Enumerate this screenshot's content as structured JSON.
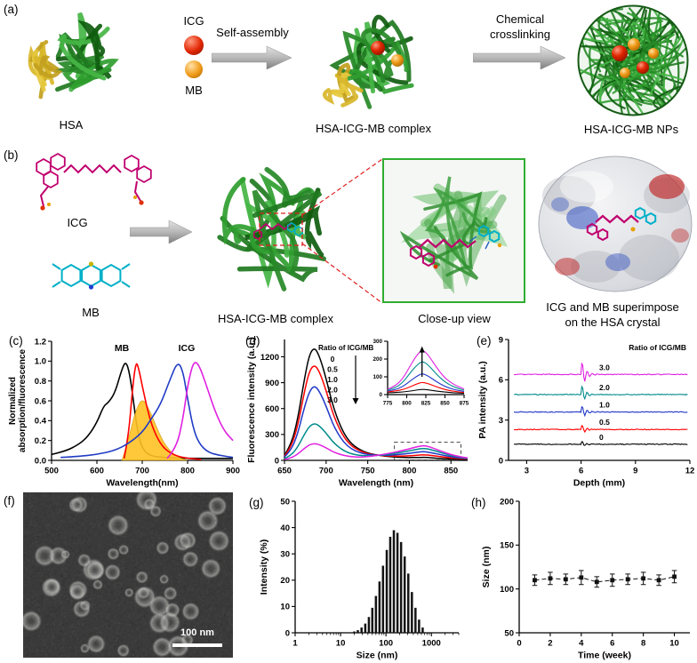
{
  "panels": {
    "a": {
      "tag": "(a)",
      "hsa": "HSA",
      "icg": "ICG",
      "mb": "MB",
      "arrow1": "Self-assembly",
      "arrow2": [
        "Chemical",
        "crosslinking"
      ],
      "complex": "HSA-ICG-MB complex",
      "nps": "HSA-ICG-MB NPs"
    },
    "b": {
      "tag": "(b)",
      "icg": "ICG",
      "mb": "MB",
      "complex": "HSA-ICG-MB complex",
      "closeup": "Close-up view",
      "superimpose": [
        "ICG and MB superimpose",
        "on the HSA crystal"
      ]
    },
    "c": {
      "tag": "(c)"
    },
    "d": {
      "tag": "(d)"
    },
    "e": {
      "tag": "(e)"
    },
    "f": {
      "tag": "(f)",
      "scalebar": "100 nm"
    },
    "g": {
      "tag": "(g)"
    },
    "h": {
      "tag": "(h)"
    }
  },
  "colors": {
    "ribbon_green": [
      "#1f7a1f",
      "#2f9e2f",
      "#45b545",
      "#0f5c0f",
      "#278927"
    ],
    "ribbon_yellow": [
      "#d8b62a",
      "#c2a01e",
      "#e6c93e"
    ],
    "icg_red_sphere": "#e02500",
    "mb_orange_sphere": "#f09a18",
    "icg_structure": "#c0006e",
    "mb_structure": "#00b0c8",
    "closeup_border": "#2fae2f",
    "dashed_connector": "#e02020"
  },
  "chart_data": [
    {
      "id": "c",
      "type": "line",
      "xlabel": "Wavelength(nm)",
      "ylabel_lines": [
        "Normalized",
        "absorption/fluorescence"
      ],
      "xlim": [
        500,
        900
      ],
      "ylim": [
        0,
        1.2
      ],
      "xticks": [
        500,
        600,
        700,
        800,
        900
      ],
      "yticks": [
        0,
        0.2,
        0.4,
        0.6,
        0.8,
        1.0,
        1.2
      ],
      "ytick_decimals": 1,
      "annotations": [
        {
          "text": "MB",
          "x": 655,
          "y": 1.1
        },
        {
          "text": "ICG",
          "x": 798,
          "y": 1.1
        }
      ],
      "series": [
        {
          "name": "MB absorption",
          "color": "#000000",
          "x": [
            500,
            530,
            560,
            580,
            600,
            615,
            625,
            640,
            655,
            664,
            672,
            680,
            690,
            700,
            715,
            740,
            800,
            900
          ],
          "y": [
            0.06,
            0.09,
            0.16,
            0.24,
            0.38,
            0.55,
            0.58,
            0.68,
            0.92,
            1.0,
            0.88,
            0.62,
            0.28,
            0.12,
            0.05,
            0.03,
            0.02,
            0.02
          ]
        },
        {
          "name": "overlap region (filled)",
          "color": "#FFC125",
          "fill": true,
          "x": [
            655,
            670,
            685,
            700,
            715,
            730,
            745,
            760,
            780,
            800
          ],
          "y": [
            0.0,
            0.22,
            0.5,
            0.63,
            0.52,
            0.35,
            0.2,
            0.1,
            0.03,
            0.0
          ]
        },
        {
          "name": "MB fluorescence",
          "color": "#FF0000",
          "x": [
            660,
            670,
            678,
            686,
            692,
            700,
            712,
            725,
            745,
            770,
            800,
            830
          ],
          "y": [
            0.02,
            0.25,
            0.7,
            1.0,
            0.93,
            0.75,
            0.5,
            0.3,
            0.13,
            0.05,
            0.02,
            0.01
          ]
        },
        {
          "name": "ICG absorption",
          "color": "#1F3BC4",
          "x": [
            520,
            560,
            600,
            640,
            670,
            700,
            720,
            740,
            760,
            778,
            790,
            800,
            812,
            825,
            845,
            870,
            900
          ],
          "y": [
            0.03,
            0.04,
            0.06,
            0.1,
            0.17,
            0.28,
            0.42,
            0.56,
            0.8,
            1.0,
            0.9,
            0.62,
            0.33,
            0.17,
            0.08,
            0.05,
            0.03
          ]
        },
        {
          "name": "ICG fluorescence",
          "color": "#E020E0",
          "x": [
            755,
            775,
            790,
            800,
            810,
            818,
            828,
            842,
            860,
            880,
            900
          ],
          "y": [
            0.02,
            0.12,
            0.42,
            0.75,
            0.95,
            1.0,
            0.93,
            0.75,
            0.5,
            0.3,
            0.2
          ]
        }
      ]
    },
    {
      "id": "d",
      "type": "line",
      "xlabel": "Wavelength (nm)",
      "ylabel": "Fluorescence intensity (a.u.)",
      "xlim": [
        650,
        870
      ],
      "ylim": [
        0,
        1400
      ],
      "xticks": [
        650,
        700,
        750,
        800,
        850
      ],
      "yticks": [
        0,
        300,
        600,
        900,
        1200
      ],
      "legend": {
        "title": "Ratio of ICG/MB",
        "values": [
          "0",
          "0.5",
          "1.0",
          "2.0",
          "3.0"
        ],
        "arrow": "down"
      },
      "x": [
        650,
        658,
        666,
        674,
        680,
        686,
        692,
        700,
        710,
        725,
        745,
        770,
        795,
        810,
        818,
        826,
        840,
        855,
        870
      ],
      "series": [
        {
          "name": "0",
          "color": "#000000",
          "y": [
            60,
            180,
            480,
            950,
            1230,
            1310,
            1210,
            950,
            560,
            230,
            90,
            45,
            32,
            33,
            35,
            30,
            20,
            14,
            10
          ]
        },
        {
          "name": "0.5",
          "color": "#FF0000",
          "y": [
            50,
            150,
            400,
            800,
            1040,
            1110,
            1030,
            810,
            480,
            200,
            80,
            48,
            50,
            60,
            65,
            58,
            40,
            24,
            15
          ]
        },
        {
          "name": "1.0",
          "color": "#2038C8",
          "y": [
            40,
            115,
            310,
            620,
            800,
            870,
            800,
            630,
            370,
            155,
            68,
            55,
            75,
            95,
            102,
            90,
            60,
            34,
            20
          ]
        },
        {
          "name": "2.0",
          "color": "#008B8B",
          "y": [
            20,
            58,
            155,
            305,
            395,
            430,
            400,
            315,
            190,
            85,
            48,
            62,
            100,
            130,
            140,
            125,
            82,
            45,
            24
          ]
        },
        {
          "name": "3.0",
          "color": "#E020E0",
          "y": [
            10,
            28,
            72,
            140,
            182,
            195,
            182,
            145,
            90,
            45,
            35,
            70,
            120,
            160,
            172,
            152,
            100,
            52,
            28
          ]
        }
      ],
      "dashed_box": {
        "x1": 782,
        "x2": 862,
        "y1": 5,
        "y2": 210
      },
      "inset": {
        "xlim": [
          775,
          875
        ],
        "ylim": [
          0,
          300
        ],
        "xticks": [
          775,
          800,
          825,
          850,
          875
        ],
        "yticks": [
          0,
          100,
          200,
          300
        ],
        "x": [
          775,
          785,
          795,
          805,
          812,
          820,
          828,
          838,
          850,
          862,
          875
        ],
        "series": [
          {
            "name": "0",
            "color": "#000000",
            "y": [
              10,
              12,
              15,
              20,
              25,
              30,
              27,
              20,
              14,
              10,
              8
            ]
          },
          {
            "name": "0.5",
            "color": "#FF0000",
            "y": [
              15,
              20,
              28,
              45,
              58,
              70,
              62,
              45,
              28,
              18,
              12
            ]
          },
          {
            "name": "1.0",
            "color": "#2038C8",
            "y": [
              20,
              28,
              45,
              78,
              100,
              120,
              105,
              75,
              45,
              28,
              18
            ]
          },
          {
            "name": "2.0",
            "color": "#008B8B",
            "y": [
              25,
              38,
              68,
              125,
              160,
              190,
              168,
              118,
              70,
              42,
              25
            ]
          },
          {
            "name": "3.0",
            "color": "#E020E0",
            "y": [
              30,
              48,
              90,
              165,
              215,
              255,
              225,
              158,
              92,
              55,
              32
            ]
          }
        ],
        "arrow_x": 820
      }
    },
    {
      "id": "e",
      "type": "line",
      "xlabel": "Depth (mm)",
      "ylabel": "PA intensity (a.u.)",
      "xlim": [
        2,
        12
      ],
      "ylim": [
        0,
        9
      ],
      "xticks": [
        3,
        6,
        9,
        12
      ],
      "yticks": [
        0,
        3,
        6,
        9
      ],
      "legend_title": "Ratio of ICG/MB",
      "spike_x": 6.0,
      "series": [
        {
          "name": "3.0",
          "color": "#E020E0",
          "baseline": 6.4,
          "amplitude": 1.25
        },
        {
          "name": "2.0",
          "color": "#008B8B",
          "baseline": 4.9,
          "amplitude": 0.85
        },
        {
          "name": "1.0",
          "color": "#2038C8",
          "baseline": 3.6,
          "amplitude": 0.6
        },
        {
          "name": "0.5",
          "color": "#FF0000",
          "baseline": 2.3,
          "amplitude": 0.42
        },
        {
          "name": "0",
          "color": "#000000",
          "baseline": 1.2,
          "amplitude": 0.28
        }
      ]
    },
    {
      "id": "g",
      "type": "bar",
      "xlabel": "Size (nm)",
      "ylabel": "Intensity (%)",
      "xscale": "log",
      "xlim": [
        1,
        4000
      ],
      "ylim": [
        0,
        50
      ],
      "xticks": [
        1,
        10,
        100,
        1000
      ],
      "yticks": [
        0,
        10,
        20,
        30,
        40,
        50
      ],
      "sizes": [
        20,
        24,
        29,
        35,
        42,
        50,
        60,
        72,
        86,
        104,
        124,
        149,
        179,
        215,
        258,
        310,
        372,
        446,
        535,
        642
      ],
      "intensities": [
        0.5,
        1,
        2,
        3.5,
        6,
        9.5,
        14,
        19.5,
        25.5,
        31.5,
        36.5,
        39,
        38,
        34.5,
        29,
        22.5,
        15.5,
        9.5,
        5,
        2
      ],
      "bar_color": "#141414"
    },
    {
      "id": "h",
      "type": "scatter-line",
      "xlabel": "Time (week)",
      "ylabel": "Size (nm)",
      "xlim": [
        0,
        11
      ],
      "ylim": [
        50,
        200
      ],
      "xticks": [
        0,
        2,
        4,
        6,
        8,
        10
      ],
      "yticks": [
        50,
        100,
        150,
        200
      ],
      "weeks": [
        1,
        2,
        3,
        4,
        5,
        6,
        7,
        8,
        9,
        10
      ],
      "sizes": [
        110,
        112,
        111,
        113,
        108,
        110,
        111,
        112,
        110,
        114
      ],
      "errors": [
        6,
        7,
        6,
        8,
        6,
        7,
        6,
        7,
        6,
        7
      ],
      "color": "#111111",
      "line_style": "dashed"
    }
  ]
}
